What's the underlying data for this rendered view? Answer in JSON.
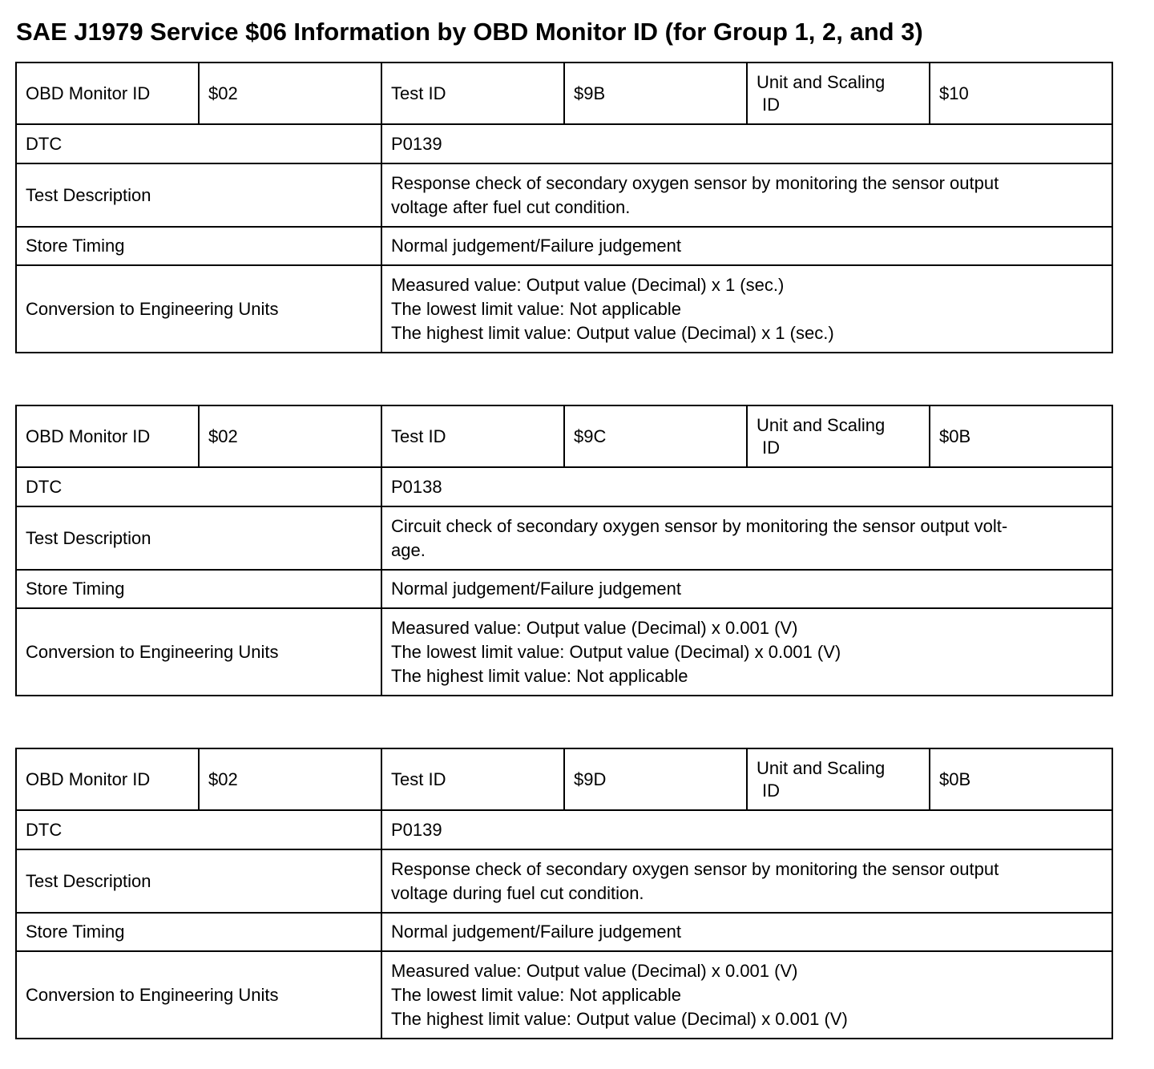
{
  "title": "SAE J1979 Service $06 Information by OBD Monitor ID (for Group 1, 2, and 3)",
  "labels": {
    "obd_monitor_id": "OBD Monitor ID",
    "test_id": "Test ID",
    "unit_scaling_id_1": "Unit and Scaling",
    "unit_scaling_id_2": "ID",
    "dtc": "DTC",
    "test_description": "Test Description",
    "store_timing": "Store Timing",
    "conversion": "Conversion to Engineering Units"
  },
  "tables": [
    {
      "obd_monitor_id": "$02",
      "test_id": "$9B",
      "unit_scaling_id": "$10",
      "dtc": "P0139",
      "test_description": [
        "Response check of secondary oxygen sensor by monitoring the sensor output",
        "voltage after fuel cut condition."
      ],
      "store_timing": "Normal judgement/Failure judgement",
      "conversion": [
        "Measured value: Output value (Decimal) x 1 (sec.)",
        "The lowest limit value: Not applicable",
        "The highest limit value: Output value (Decimal) x 1 (sec.)"
      ]
    },
    {
      "obd_monitor_id": "$02",
      "test_id": "$9C",
      "unit_scaling_id": "$0B",
      "dtc": "P0138",
      "test_description": [
        "Circuit check of secondary oxygen sensor by monitoring the sensor output volt-",
        "age."
      ],
      "store_timing": "Normal judgement/Failure judgement",
      "conversion": [
        "Measured value: Output value (Decimal) x 0.001 (V)",
        "The lowest limit value: Output value (Decimal) x 0.001 (V)",
        "The highest limit value: Not applicable"
      ]
    },
    {
      "obd_monitor_id": "$02",
      "test_id": "$9D",
      "unit_scaling_id": "$0B",
      "dtc": "P0139",
      "test_description": [
        "Response check of secondary oxygen sensor by monitoring the sensor output",
        "voltage during fuel cut condition."
      ],
      "store_timing": "Normal judgement/Failure judgement",
      "conversion": [
        "Measured value: Output value (Decimal) x 0.001 (V)",
        "The lowest limit value: Not applicable",
        "The highest limit value: Output value (Decimal) x 0.001 (V)"
      ]
    }
  ]
}
